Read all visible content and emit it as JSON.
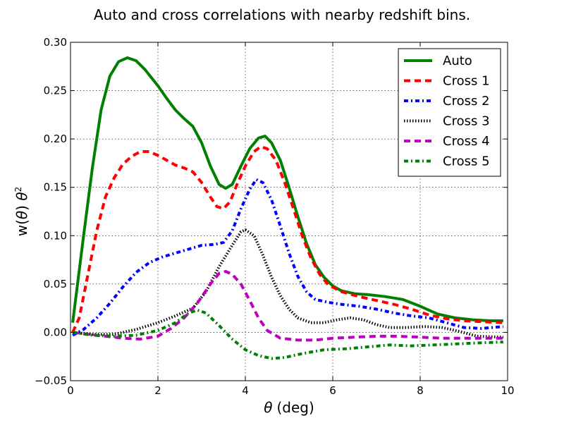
{
  "chart_data": {
    "type": "line",
    "title": "Auto and cross correlations with nearby redshift bins.",
    "xlabel_symbol": "θ",
    "xlabel_unit": "(deg)",
    "ylabel_prefix": "w(",
    "ylabel_symbol": "θ",
    "ylabel_mid": ") ",
    "ylabel_sym2": "θ",
    "ylabel_sup": "2",
    "xlim": [
      0,
      10
    ],
    "ylim": [
      -0.05,
      0.3
    ],
    "xticks": [
      0,
      2,
      4,
      6,
      8,
      10
    ],
    "xtick_labels": [
      "0",
      "2",
      "4",
      "6",
      "8",
      "10"
    ],
    "yticks": [
      -0.05,
      0.0,
      0.05,
      0.1,
      0.15,
      0.2,
      0.25,
      0.3
    ],
    "ytick_labels": [
      "−0.05",
      "0.00",
      "0.05",
      "0.10",
      "0.15",
      "0.20",
      "0.25",
      "0.30"
    ],
    "grid": true,
    "legend_position": "top-right",
    "series": [
      {
        "name": "Auto",
        "color": "#008000",
        "style": "solid",
        "points": [
          [
            0.05,
            0.01
          ],
          [
            0.3,
            0.1
          ],
          [
            0.5,
            0.17
          ],
          [
            0.7,
            0.23
          ],
          [
            0.9,
            0.265
          ],
          [
            1.1,
            0.28
          ],
          [
            1.3,
            0.284
          ],
          [
            1.5,
            0.281
          ],
          [
            1.7,
            0.272
          ],
          [
            2.0,
            0.255
          ],
          [
            2.2,
            0.242
          ],
          [
            2.4,
            0.23
          ],
          [
            2.6,
            0.221
          ],
          [
            2.8,
            0.213
          ],
          [
            3.0,
            0.196
          ],
          [
            3.2,
            0.172
          ],
          [
            3.4,
            0.153
          ],
          [
            3.55,
            0.149
          ],
          [
            3.7,
            0.153
          ],
          [
            3.9,
            0.172
          ],
          [
            4.1,
            0.19
          ],
          [
            4.3,
            0.201
          ],
          [
            4.45,
            0.203
          ],
          [
            4.6,
            0.196
          ],
          [
            4.8,
            0.178
          ],
          [
            5.0,
            0.15
          ],
          [
            5.2,
            0.12
          ],
          [
            5.4,
            0.092
          ],
          [
            5.6,
            0.07
          ],
          [
            5.8,
            0.057
          ],
          [
            6.0,
            0.048
          ],
          [
            6.2,
            0.043
          ],
          [
            6.5,
            0.04
          ],
          [
            6.8,
            0.039
          ],
          [
            7.2,
            0.037
          ],
          [
            7.6,
            0.034
          ],
          [
            8.0,
            0.027
          ],
          [
            8.4,
            0.019
          ],
          [
            8.8,
            0.015
          ],
          [
            9.2,
            0.013
          ],
          [
            9.6,
            0.012
          ],
          [
            9.9,
            0.012
          ]
        ]
      },
      {
        "name": "Cross 1",
        "color": "#ff0000",
        "style": "dashed",
        "points": [
          [
            0.05,
            0.0
          ],
          [
            0.2,
            0.015
          ],
          [
            0.4,
            0.06
          ],
          [
            0.6,
            0.105
          ],
          [
            0.8,
            0.14
          ],
          [
            1.0,
            0.16
          ],
          [
            1.2,
            0.174
          ],
          [
            1.4,
            0.182
          ],
          [
            1.6,
            0.187
          ],
          [
            1.8,
            0.187
          ],
          [
            2.0,
            0.183
          ],
          [
            2.2,
            0.178
          ],
          [
            2.4,
            0.173
          ],
          [
            2.6,
            0.17
          ],
          [
            2.8,
            0.166
          ],
          [
            3.0,
            0.155
          ],
          [
            3.2,
            0.14
          ],
          [
            3.35,
            0.13
          ],
          [
            3.5,
            0.128
          ],
          [
            3.65,
            0.135
          ],
          [
            3.8,
            0.152
          ],
          [
            4.0,
            0.172
          ],
          [
            4.2,
            0.187
          ],
          [
            4.35,
            0.192
          ],
          [
            4.5,
            0.19
          ],
          [
            4.7,
            0.178
          ],
          [
            4.9,
            0.155
          ],
          [
            5.1,
            0.128
          ],
          [
            5.3,
            0.1
          ],
          [
            5.5,
            0.077
          ],
          [
            5.7,
            0.06
          ],
          [
            5.9,
            0.049
          ],
          [
            6.2,
            0.042
          ],
          [
            6.6,
            0.037
          ],
          [
            7.0,
            0.033
          ],
          [
            7.4,
            0.029
          ],
          [
            7.8,
            0.024
          ],
          [
            8.2,
            0.018
          ],
          [
            8.6,
            0.014
          ],
          [
            9.0,
            0.012
          ],
          [
            9.4,
            0.011
          ],
          [
            9.9,
            0.01
          ]
        ]
      },
      {
        "name": "Cross 2",
        "color": "#0000ff",
        "style": "dashdot",
        "points": [
          [
            0.05,
            -0.003
          ],
          [
            0.3,
            0.003
          ],
          [
            0.6,
            0.015
          ],
          [
            0.9,
            0.03
          ],
          [
            1.2,
            0.047
          ],
          [
            1.5,
            0.062
          ],
          [
            1.8,
            0.072
          ],
          [
            2.1,
            0.078
          ],
          [
            2.4,
            0.082
          ],
          [
            2.7,
            0.086
          ],
          [
            3.0,
            0.09
          ],
          [
            3.3,
            0.091
          ],
          [
            3.5,
            0.093
          ],
          [
            3.7,
            0.105
          ],
          [
            3.9,
            0.128
          ],
          [
            4.1,
            0.148
          ],
          [
            4.25,
            0.158
          ],
          [
            4.4,
            0.155
          ],
          [
            4.6,
            0.137
          ],
          [
            4.8,
            0.11
          ],
          [
            5.0,
            0.082
          ],
          [
            5.2,
            0.058
          ],
          [
            5.4,
            0.042
          ],
          [
            5.6,
            0.034
          ],
          [
            5.9,
            0.031
          ],
          [
            6.2,
            0.029
          ],
          [
            6.6,
            0.027
          ],
          [
            7.0,
            0.024
          ],
          [
            7.4,
            0.02
          ],
          [
            7.8,
            0.017
          ],
          [
            8.2,
            0.015
          ],
          [
            8.6,
            0.01
          ],
          [
            9.0,
            0.005
          ],
          [
            9.4,
            0.004
          ],
          [
            9.9,
            0.006
          ]
        ]
      },
      {
        "name": "Cross 3",
        "color": "#000000",
        "style": "dotted",
        "points": [
          [
            0.05,
            0.0
          ],
          [
            0.5,
            -0.002
          ],
          [
            1.0,
            -0.002
          ],
          [
            1.5,
            0.003
          ],
          [
            2.0,
            0.01
          ],
          [
            2.4,
            0.017
          ],
          [
            2.8,
            0.025
          ],
          [
            3.1,
            0.042
          ],
          [
            3.4,
            0.068
          ],
          [
            3.7,
            0.09
          ],
          [
            3.9,
            0.104
          ],
          [
            4.0,
            0.106
          ],
          [
            4.2,
            0.1
          ],
          [
            4.4,
            0.08
          ],
          [
            4.6,
            0.057
          ],
          [
            4.8,
            0.038
          ],
          [
            5.0,
            0.024
          ],
          [
            5.2,
            0.015
          ],
          [
            5.5,
            0.01
          ],
          [
            5.8,
            0.01
          ],
          [
            6.1,
            0.013
          ],
          [
            6.4,
            0.015
          ],
          [
            6.7,
            0.013
          ],
          [
            7.0,
            0.008
          ],
          [
            7.3,
            0.005
          ],
          [
            7.7,
            0.005
          ],
          [
            8.1,
            0.006
          ],
          [
            8.5,
            0.005
          ],
          [
            8.9,
            0.001
          ],
          [
            9.3,
            -0.004
          ],
          [
            9.9,
            -0.005
          ]
        ]
      },
      {
        "name": "Cross 4",
        "color": "#bf00bf",
        "style": "dashed",
        "points": [
          [
            0.05,
            0.0
          ],
          [
            0.4,
            -0.002
          ],
          [
            0.8,
            -0.004
          ],
          [
            1.2,
            -0.006
          ],
          [
            1.6,
            -0.007
          ],
          [
            2.0,
            -0.004
          ],
          [
            2.3,
            0.004
          ],
          [
            2.6,
            0.015
          ],
          [
            2.9,
            0.03
          ],
          [
            3.2,
            0.05
          ],
          [
            3.4,
            0.061
          ],
          [
            3.55,
            0.063
          ],
          [
            3.7,
            0.06
          ],
          [
            3.9,
            0.05
          ],
          [
            4.1,
            0.033
          ],
          [
            4.3,
            0.015
          ],
          [
            4.5,
            0.002
          ],
          [
            4.8,
            -0.006
          ],
          [
            5.2,
            -0.008
          ],
          [
            5.6,
            -0.008
          ],
          [
            6.0,
            -0.006
          ],
          [
            6.5,
            -0.005
          ],
          [
            7.0,
            -0.004
          ],
          [
            7.5,
            -0.004
          ],
          [
            8.0,
            -0.005
          ],
          [
            8.5,
            -0.006
          ],
          [
            9.0,
            -0.006
          ],
          [
            9.5,
            -0.006
          ],
          [
            9.9,
            -0.006
          ]
        ]
      },
      {
        "name": "Cross 5",
        "color": "#008000",
        "style": "dashdot",
        "points": [
          [
            0.05,
            0.0
          ],
          [
            0.5,
            -0.003
          ],
          [
            1.0,
            -0.004
          ],
          [
            1.5,
            -0.003
          ],
          [
            2.0,
            0.002
          ],
          [
            2.4,
            0.01
          ],
          [
            2.7,
            0.02
          ],
          [
            2.9,
            0.023
          ],
          [
            3.1,
            0.02
          ],
          [
            3.4,
            0.007
          ],
          [
            3.7,
            -0.007
          ],
          [
            4.0,
            -0.018
          ],
          [
            4.3,
            -0.024
          ],
          [
            4.6,
            -0.027
          ],
          [
            4.9,
            -0.026
          ],
          [
            5.3,
            -0.022
          ],
          [
            5.8,
            -0.018
          ],
          [
            6.3,
            -0.017
          ],
          [
            6.8,
            -0.015
          ],
          [
            7.3,
            -0.013
          ],
          [
            7.8,
            -0.014
          ],
          [
            8.3,
            -0.013
          ],
          [
            8.8,
            -0.012
          ],
          [
            9.3,
            -0.011
          ],
          [
            9.9,
            -0.01
          ]
        ]
      }
    ]
  }
}
